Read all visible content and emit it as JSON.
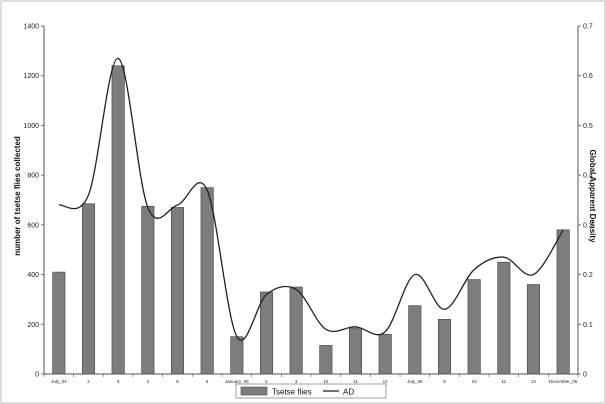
{
  "chart_data": {
    "type": "bar",
    "categories": [
      "July_04",
      "2",
      "3",
      "4",
      "5",
      "6",
      "January_05",
      "2",
      "3",
      "10",
      "11",
      "12",
      "July_05",
      "8",
      "10",
      "11",
      "12",
      "December_05"
    ],
    "ylabel": "number of tsetse flies collected",
    "y2label": "Global Apparent Density",
    "ylim": [
      0,
      1400
    ],
    "y2lim": [
      0,
      0.7
    ],
    "yticks": [
      "0",
      "200",
      "400",
      "600",
      "800",
      "1000",
      "1200",
      "1400"
    ],
    "y2ticks": [
      "0",
      "0.1",
      "0.2",
      "0.3",
      "0.4",
      "0.5",
      "0.6",
      "0.7"
    ],
    "series": [
      {
        "name": "Tsetse flies",
        "type": "bar",
        "axis": "left",
        "values": [
          410,
          685,
          1240,
          675,
          670,
          750,
          150,
          330,
          350,
          115,
          185,
          160,
          275,
          220,
          380,
          450,
          360,
          580
        ]
      },
      {
        "name": "AD",
        "type": "line",
        "axis": "right",
        "values": [
          0.34,
          0.36,
          0.635,
          0.335,
          0.34,
          0.37,
          0.075,
          0.16,
          0.17,
          0.09,
          0.095,
          0.085,
          0.2,
          0.13,
          0.21,
          0.235,
          0.2,
          0.29
        ]
      }
    ],
    "legend_position": "bottom-center",
    "grid": false,
    "colors": {
      "bar": "#7d7d7d",
      "bar_edge": "#444444",
      "line": "#222222"
    }
  }
}
